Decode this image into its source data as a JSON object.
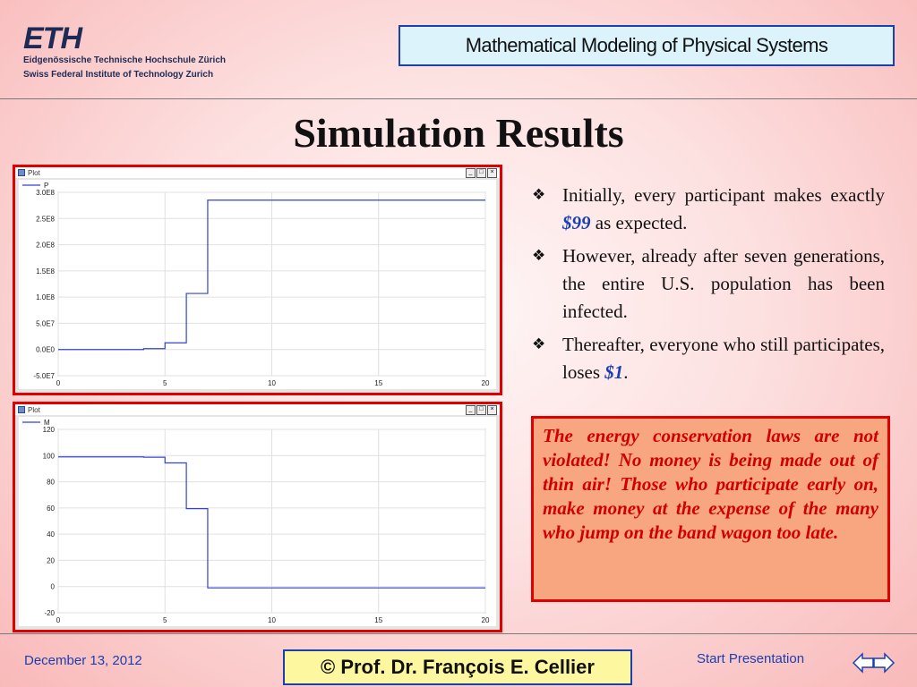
{
  "header": {
    "logo_mark": "ETH",
    "logo_line1": "Eidgenössische Technische Hochschule Zürich",
    "logo_line2": "Swiss Federal Institute of Technology Zurich",
    "course_title": "Mathematical Modeling of Physical Systems"
  },
  "slide": {
    "title": "Simulation Results"
  },
  "bullets": [
    {
      "parts": [
        {
          "t": "Initially, every participant makes exactly "
        },
        {
          "t": "$99",
          "hl": true
        },
        {
          "t": " as expected."
        }
      ]
    },
    {
      "parts": [
        {
          "t": "However, already after seven generations, the entire U.S. population has been infected."
        }
      ]
    },
    {
      "parts": [
        {
          "t": "Thereafter, everyone who still participates, loses "
        },
        {
          "t": "$1",
          "hl": true
        },
        {
          "t": "."
        }
      ]
    }
  ],
  "note": "The energy conservation laws are not violated!  No money is being made out of thin air! Those who participate early on, make money at the expense of the many who jump on the band wagon too late.",
  "footer": {
    "date": "December 13, 2012",
    "author": "©  Prof. Dr. François E. Cellier",
    "start_label": "Start Presentation"
  },
  "window_controls": {
    "minimize": "_",
    "maximize": "□",
    "close": "×"
  },
  "icons": {
    "bullet": "diamond-bullet-icon",
    "prev": "arrow-left-icon",
    "next": "arrow-right-icon"
  },
  "colors": {
    "frame": "#e00000",
    "series": "#3344cc",
    "accent": "#1a3fb0",
    "note_bg": "#f8a67f"
  },
  "chart_data": [
    {
      "type": "line",
      "window_title": "Plot",
      "series": [
        {
          "name": "P",
          "x": [
            0,
            4,
            4,
            5,
            5,
            6,
            6,
            7,
            7,
            20
          ],
          "y": [
            0,
            0,
            1600000.0,
            1600000.0,
            12800000.0,
            12800000.0,
            107000000.0,
            107000000.0,
            285000000.0,
            285000000.0
          ]
        }
      ],
      "xlim": [
        0,
        20
      ],
      "ylim": [
        -50000000.0,
        300000000.0
      ],
      "xticks": [
        0,
        5,
        10,
        15,
        20
      ],
      "yticks": [
        -50000000.0,
        0,
        50000000.0,
        100000000.0,
        150000000.0,
        200000000.0,
        250000000.0,
        300000000.0
      ],
      "ytick_labels": [
        "-5.0E7",
        "0.0E0",
        "5.0E7",
        "1.0E8",
        "1.5E8",
        "2.0E8",
        "2.5E8",
        "3.0E8"
      ],
      "grid": true,
      "legend": "top-left"
    },
    {
      "type": "line",
      "window_title": "Plot",
      "series": [
        {
          "name": "M",
          "x": [
            0,
            4,
            4,
            5,
            5,
            6,
            6,
            7,
            7,
            20
          ],
          "y": [
            99,
            99,
            98.75,
            98.75,
            94.4,
            94.4,
            59.5,
            59.5,
            -1,
            -1
          ]
        }
      ],
      "xlim": [
        0,
        20
      ],
      "ylim": [
        -20,
        120
      ],
      "xticks": [
        0,
        5,
        10,
        15,
        20
      ],
      "yticks": [
        -20,
        0,
        20,
        40,
        60,
        80,
        100,
        120
      ],
      "ytick_labels": [
        "-20",
        "0",
        "20",
        "40",
        "60",
        "80",
        "100",
        "120"
      ],
      "grid": true,
      "legend": "top-left"
    }
  ]
}
